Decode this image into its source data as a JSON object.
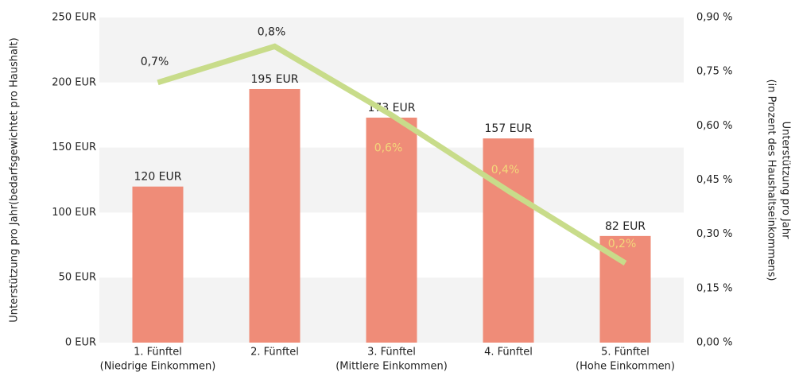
{
  "chart_data": {
    "type": "bar",
    "categories": [
      [
        "1. Fünftel",
        "(Niedrige Einkommen)"
      ],
      [
        "2. Fünftel"
      ],
      [
        "3. Fünftel",
        "(Mittlere Einkommen)"
      ],
      [
        "4. Fünftel"
      ],
      [
        "5. Fünftel",
        "(Hohe Einkommen)"
      ]
    ],
    "ylabel": "Unterstützung pro Jahr(bedarfsgewichtet pro Haushalt)",
    "y2label": [
      "Unterstützung pro Jahr",
      "(in Prozent des Haushaltseinkommens)"
    ],
    "ylim": [
      0,
      250
    ],
    "yticks": [
      {
        "value": 0,
        "label": "0 EUR"
      },
      {
        "value": 50,
        "label": "50 EUR"
      },
      {
        "value": 100,
        "label": "100 EUR"
      },
      {
        "value": 150,
        "label": "150 EUR"
      },
      {
        "value": 200,
        "label": "200 EUR"
      },
      {
        "value": 250,
        "label": "250 EUR"
      }
    ],
    "y2lim": [
      0,
      0.9
    ],
    "y2ticks": [
      {
        "value": 0,
        "label": "0,00 %"
      },
      {
        "value": 0.15,
        "label": "0,15 %"
      },
      {
        "value": 0.3,
        "label": "0,30 %"
      },
      {
        "value": 0.45,
        "label": "0,45 %"
      },
      {
        "value": 0.6,
        "label": "0,60 %"
      },
      {
        "value": 0.75,
        "label": "0,75 %"
      },
      {
        "value": 0.9,
        "label": "0,90 %"
      }
    ],
    "series": [
      {
        "type": "bar",
        "color": "#ef8c78",
        "values": [
          120,
          195,
          173,
          157,
          82
        ],
        "value_labels": [
          "120 EUR",
          "195 EUR",
          "173 EUR",
          "157 EUR",
          "82 EUR"
        ]
      },
      {
        "type": "line",
        "axis": "y2",
        "color": "#c8dc8a",
        "values": [
          0.72,
          0.82,
          0.63,
          0.42,
          0.22
        ],
        "value_labels": [
          "0,7%",
          "0,8%",
          "0,6%",
          "0,4%",
          "0,2%"
        ]
      }
    ]
  }
}
